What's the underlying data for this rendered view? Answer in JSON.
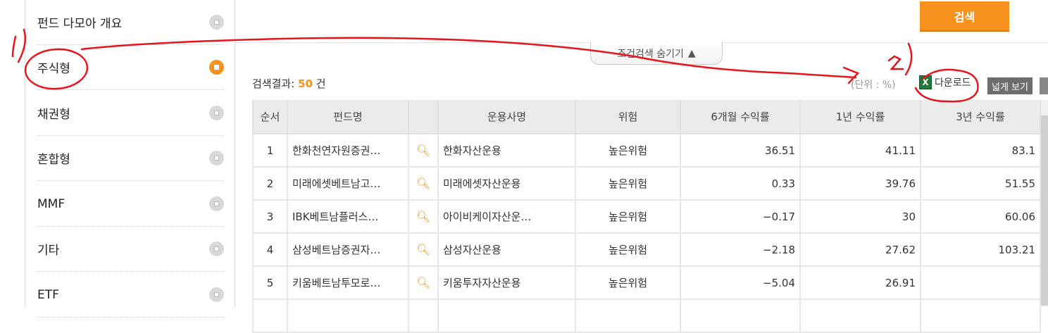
{
  "sidebar": {
    "items": [
      {
        "label": "펀드 다모아 개요",
        "active": false
      },
      {
        "label": "주식형",
        "active": true
      },
      {
        "label": "채권형",
        "active": false
      },
      {
        "label": "혼합형",
        "active": false
      },
      {
        "label": "MMF",
        "active": false
      },
      {
        "label": "기타",
        "active": false
      },
      {
        "label": "ETF",
        "active": false
      }
    ]
  },
  "toolbar": {
    "search_label": "검색",
    "fold_label": "조건검색 숨기기",
    "fold_icon": "chevron-up-icon"
  },
  "results": {
    "prefix": "검색결과:",
    "count": "50",
    "suffix": "건",
    "unit": "(단위 : %)",
    "download_label": "다운로드",
    "wide_view_label": "넓게 보기"
  },
  "table": {
    "headers": [
      "순서",
      "펀드명",
      "",
      "운용사명",
      "위험",
      "6개월 수익률",
      "1년 수익률",
      "3년 수익률"
    ],
    "rows": [
      [
        "1",
        "한화천연자원증권…",
        "한화자산운용",
        "높은위험",
        "36.51",
        "41.11",
        "83.1"
      ],
      [
        "2",
        "미래에셋베트남고…",
        "미래에셋자산운용",
        "높은위험",
        "0.33",
        "39.76",
        "51.55"
      ],
      [
        "3",
        "IBK베트남플러스…",
        "아이비케이자산운…",
        "높은위험",
        "−0.17",
        "30",
        "60.06"
      ],
      [
        "4",
        "삼성베트남증권자…",
        "삼성자산운용",
        "높은위험",
        "−2.18",
        "27.62",
        "103.21"
      ],
      [
        "5",
        "키움베트남투모로…",
        "키움투자자산운용",
        "높은위험",
        "−5.04",
        "26.91",
        ""
      ]
    ]
  },
  "colors": {
    "accent": "#f7921e",
    "annotation": "#e8141c"
  }
}
